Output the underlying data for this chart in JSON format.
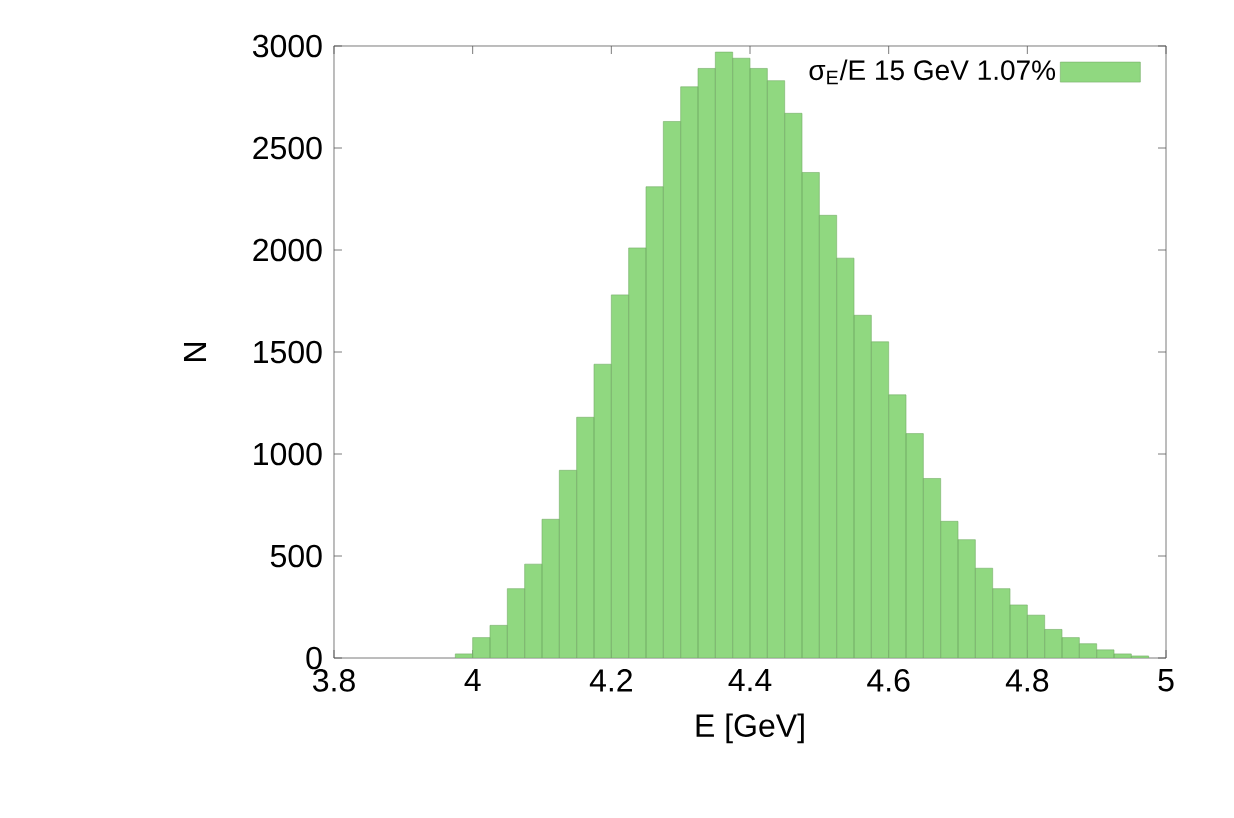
{
  "chart_data": {
    "type": "histogram",
    "xlabel": "E [GeV]",
    "ylabel": "N",
    "bins": [
      3.975,
      4.0,
      4.025,
      4.05,
      4.075,
      4.1,
      4.125,
      4.15,
      4.175,
      4.2,
      4.225,
      4.25,
      4.275,
      4.3,
      4.325,
      4.35,
      4.375,
      4.4,
      4.425,
      4.45,
      4.475,
      4.5,
      4.525,
      4.55,
      4.575,
      4.6,
      4.625,
      4.65,
      4.675,
      4.7,
      4.725,
      4.75,
      4.775,
      4.8,
      4.825,
      4.85,
      4.875,
      4.9,
      4.925,
      4.95,
      4.975
    ],
    "series": [
      {
        "name": "σ$_{E}$/E 15 GeV    1.07%",
        "color": "#90d880",
        "values": [
          20,
          100,
          160,
          340,
          460,
          680,
          920,
          1180,
          1440,
          1780,
          2010,
          2310,
          2630,
          2800,
          2890,
          2970,
          2940,
          2890,
          2830,
          2670,
          2380,
          2170,
          1960,
          1680,
          1550,
          1290,
          1100,
          880,
          670,
          580,
          440,
          340,
          260,
          210,
          140,
          100,
          70,
          40,
          20,
          10
        ]
      }
    ],
    "xlim": [
      3.8,
      5
    ],
    "ylim": [
      0,
      3000
    ],
    "xticks": [
      3.8,
      4,
      4.2,
      4.4,
      4.6,
      4.8,
      5
    ],
    "yticks": [
      0,
      500,
      1000,
      1500,
      2000,
      2500,
      3000
    ],
    "grid": false,
    "legend": "top right"
  }
}
